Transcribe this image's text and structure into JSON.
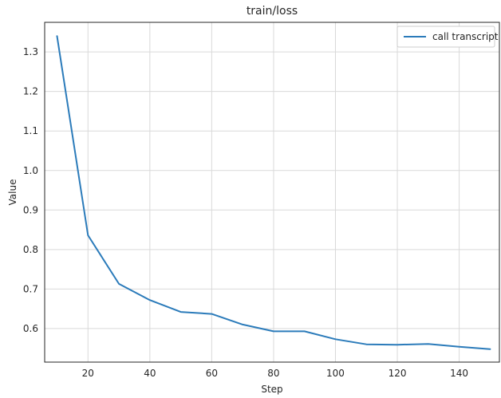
{
  "chart_data": {
    "type": "line",
    "title": "train/loss",
    "xlabel": "Step",
    "ylabel": "Value",
    "xlim": [
      6,
      153
    ],
    "ylim": [
      0.515,
      1.375
    ],
    "xticks": [
      20,
      40,
      60,
      80,
      100,
      120,
      140
    ],
    "yticks": [
      0.6,
      0.7,
      0.8,
      0.9,
      1.0,
      1.1,
      1.2,
      1.3
    ],
    "ytick_labels": [
      "0.6",
      "0.7",
      "0.8",
      "0.9",
      "1.0",
      "1.1",
      "1.2",
      "1.3"
    ],
    "grid": true,
    "legend_position": "top-right",
    "series": [
      {
        "name": "call transcript",
        "color": "#2b7bba",
        "x": [
          10,
          20,
          30,
          40,
          50,
          60,
          70,
          80,
          90,
          100,
          110,
          120,
          130,
          140,
          150
        ],
        "y": [
          1.34,
          0.836,
          0.713,
          0.672,
          0.642,
          0.637,
          0.61,
          0.593,
          0.593,
          0.573,
          0.56,
          0.559,
          0.561,
          0.554,
          0.548
        ]
      }
    ]
  }
}
